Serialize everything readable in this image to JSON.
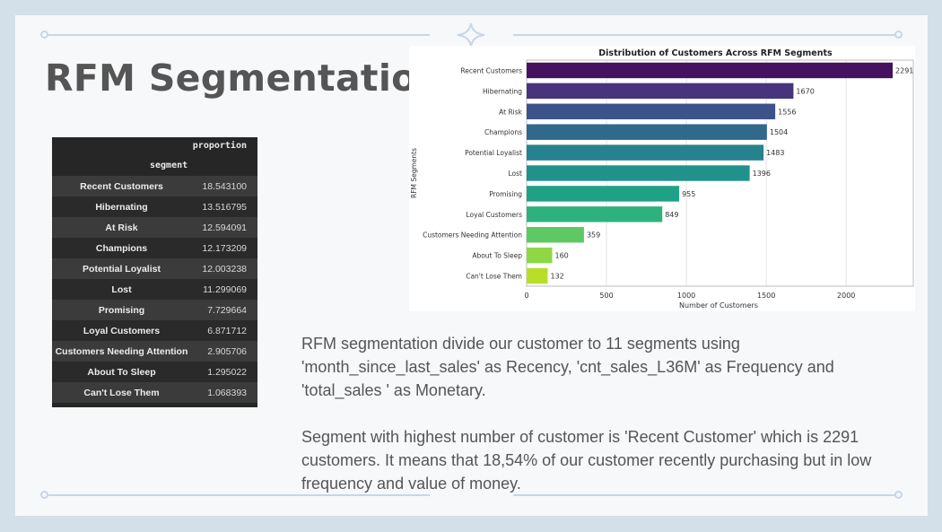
{
  "slide": {
    "title": "RFM Segmentation",
    "paragraphs": [
      "RFM segmentation divide our customer to 11 segments using 'month_since_last_sales' as Recency, 'cnt_sales_L36M' as Frequency and 'total_sales ' as Monetary.",
      "Segment with highest number of customer is 'Recent Customer' which is 2291 customers. It means that 18,54% of our customer recently purchasing but in low frequency and value of money."
    ]
  },
  "table": {
    "column_header": "proportion",
    "index_header": "segment",
    "rows": [
      {
        "segment": "Recent Customers",
        "proportion": "18.543100"
      },
      {
        "segment": "Hibernating",
        "proportion": "13.516795"
      },
      {
        "segment": "At Risk",
        "proportion": "12.594091"
      },
      {
        "segment": "Champions",
        "proportion": "12.173209"
      },
      {
        "segment": "Potential Loyalist",
        "proportion": "12.003238"
      },
      {
        "segment": "Lost",
        "proportion": "11.299069"
      },
      {
        "segment": "Promising",
        "proportion": "7.729664"
      },
      {
        "segment": "Loyal Customers",
        "proportion": "6.871712"
      },
      {
        "segment": "Customers Needing Attention",
        "proportion": "2.905706"
      },
      {
        "segment": "About To Sleep",
        "proportion": "1.295022"
      },
      {
        "segment": "Can't Lose Them",
        "proportion": "1.068393"
      }
    ]
  },
  "chart_data": {
    "type": "bar",
    "orientation": "horizontal",
    "title": "Distribution of Customers Across RFM Segments",
    "xlabel": "Number of Customers",
    "ylabel": "RFM Segments",
    "categories": [
      "Recent Customers",
      "Hibernating",
      "At Risk",
      "Champions",
      "Potential Loyalist",
      "Lost",
      "Promising",
      "Loyal Customers",
      "Customers Needing Attention",
      "About To Sleep",
      "Can't Lose Them"
    ],
    "values": [
      2291,
      1670,
      1556,
      1504,
      1483,
      1396,
      955,
      849,
      359,
      160,
      132
    ],
    "xlim": [
      0,
      2420
    ],
    "xticks": [
      0,
      500,
      1000,
      1500,
      2000
    ],
    "grid": "vertical",
    "colors": [
      "#44125f",
      "#46357c",
      "#3c528a",
      "#30698c",
      "#26828e",
      "#21918c",
      "#1fa187",
      "#2db27d",
      "#5ec962",
      "#8fd744",
      "#b8de29"
    ]
  }
}
